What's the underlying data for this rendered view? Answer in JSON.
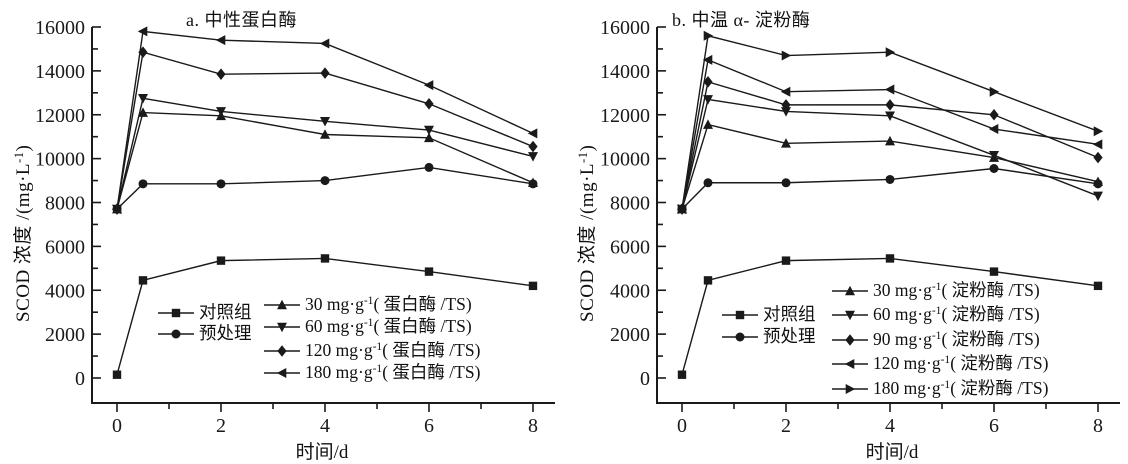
{
  "figure": {
    "background": "#ffffff",
    "ink": "#1a1a1a"
  },
  "chart_data": [
    {
      "type": "line",
      "panel_label": "a. 中性蛋白酶",
      "xlabel": "时间/d",
      "ylabel": "SCOD 浓度 /(mg·L⁻¹)",
      "x": [
        0,
        0.5,
        2,
        4,
        6,
        8
      ],
      "xlim": [
        -0.5,
        8.4
      ],
      "ylim": [
        0,
        16000
      ],
      "xticks": [
        0,
        2,
        4,
        6,
        8
      ],
      "xticks_minor": [
        1,
        3,
        5,
        7
      ],
      "yticks": [
        0,
        2000,
        4000,
        6000,
        8000,
        10000,
        12000,
        14000,
        16000
      ],
      "yticks_minor": [
        1000,
        3000,
        5000,
        7000,
        9000,
        11000,
        13000,
        15000
      ],
      "grid": false,
      "legend_position": "inside-bottom",
      "series": [
        {
          "name": "对照组",
          "marker": "square",
          "values": [
            150,
            4450,
            5350,
            5450,
            4850,
            4200
          ]
        },
        {
          "name": "预处理",
          "marker": "circle",
          "values": [
            7700,
            8850,
            8850,
            9000,
            9600,
            8850
          ]
        },
        {
          "name": "30 mg·g⁻¹( 蛋白酶 /TS)",
          "marker": "triangle-up",
          "values": [
            7700,
            12100,
            11950,
            11100,
            10950,
            8900
          ]
        },
        {
          "name": "60 mg·g⁻¹( 蛋白酶 /TS)",
          "marker": "triangle-down",
          "values": [
            7700,
            12750,
            12150,
            11700,
            11300,
            10100
          ]
        },
        {
          "name": "120 mg·g⁻¹( 蛋白酶 /TS)",
          "marker": "diamond",
          "values": [
            7700,
            14850,
            13850,
            13900,
            12500,
            10550
          ]
        },
        {
          "name": "180 mg·g⁻¹( 蛋白酶 /TS)",
          "marker": "triangle-left",
          "values": [
            7700,
            15800,
            15400,
            15250,
            13350,
            11150
          ]
        }
      ]
    },
    {
      "type": "line",
      "panel_label": "b. 中温 α- 淀粉酶",
      "xlabel": "时间/d",
      "ylabel": "SCOD 浓度 /(mg·L⁻¹)",
      "x": [
        0,
        0.5,
        2,
        4,
        6,
        8
      ],
      "xlim": [
        -0.5,
        8.4
      ],
      "ylim": [
        0,
        16000
      ],
      "xticks": [
        0,
        2,
        4,
        6,
        8
      ],
      "xticks_minor": [
        1,
        3,
        5,
        7
      ],
      "yticks": [
        0,
        2000,
        4000,
        6000,
        8000,
        10000,
        12000,
        14000,
        16000
      ],
      "yticks_minor": [
        1000,
        3000,
        5000,
        7000,
        9000,
        11000,
        13000,
        15000
      ],
      "grid": false,
      "legend_position": "inside-bottom",
      "series": [
        {
          "name": "对照组",
          "marker": "square",
          "values": [
            150,
            4450,
            5350,
            5450,
            4850,
            4200
          ]
        },
        {
          "name": "预处理",
          "marker": "circle",
          "values": [
            7700,
            8900,
            8900,
            9050,
            9550,
            8850
          ]
        },
        {
          "name": "30 mg·g⁻¹( 淀粉酶 /TS)",
          "marker": "triangle-up",
          "values": [
            7700,
            11550,
            10700,
            10800,
            10050,
            8950
          ]
        },
        {
          "name": "60 mg·g⁻¹( 淀粉酶 /TS)",
          "marker": "triangle-down",
          "values": [
            7700,
            12700,
            12150,
            11950,
            10150,
            8300
          ]
        },
        {
          "name": "90 mg·g⁻¹( 淀粉酶 /TS)",
          "marker": "diamond",
          "values": [
            7700,
            13500,
            12450,
            12450,
            12000,
            10050
          ]
        },
        {
          "name": "120 mg·g⁻¹( 淀粉酶 /TS)",
          "marker": "triangle-left",
          "values": [
            7700,
            14500,
            13050,
            13150,
            11350,
            10650
          ]
        },
        {
          "name": "180 mg·g⁻¹( 淀粉酶 /TS)",
          "marker": "triangle-right",
          "values": [
            7700,
            15600,
            14700,
            14850,
            13050,
            11250
          ]
        }
      ]
    }
  ]
}
